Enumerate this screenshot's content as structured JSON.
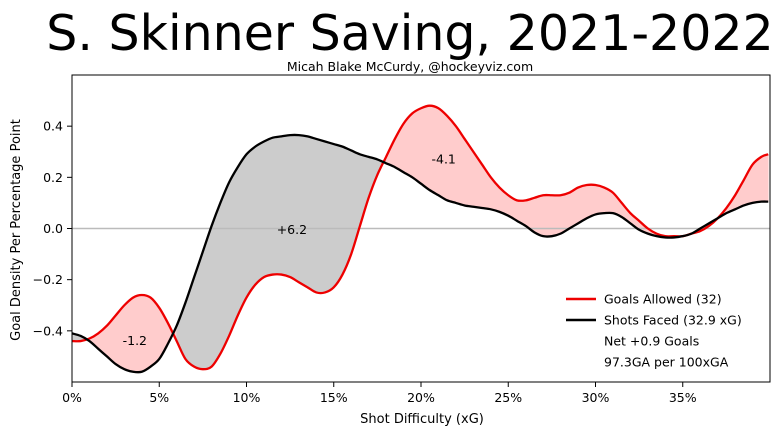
{
  "chart_data": {
    "type": "line",
    "title": "S. Skinner Saving, 2021-2022",
    "subtitle": "Micah Blake McCurdy, @hockeyviz.com",
    "xlabel": "Shot Difficulty (xG)",
    "ylabel": "Goal Density Per Percentage Point",
    "xlim": [
      0,
      40
    ],
    "ylim": [
      -0.6,
      0.6
    ],
    "x_ticks": [
      {
        "value": 0,
        "label": "0%"
      },
      {
        "value": 5,
        "label": "5%"
      },
      {
        "value": 10,
        "label": "10%"
      },
      {
        "value": 15,
        "label": "15%"
      },
      {
        "value": 20,
        "label": "20%"
      },
      {
        "value": 25,
        "label": "25%"
      },
      {
        "value": 30,
        "label": "30%"
      },
      {
        "value": 35,
        "label": "35%"
      }
    ],
    "y_ticks": [
      {
        "value": -0.4,
        "label": "−0.4"
      },
      {
        "value": -0.2,
        "label": "−0.2"
      },
      {
        "value": 0.0,
        "label": "0.0"
      },
      {
        "value": 0.2,
        "label": "0.2"
      },
      {
        "value": 0.4,
        "label": "0.4"
      }
    ],
    "zero_line": true,
    "grid": false,
    "legend_position": "bottom-right",
    "series": [
      {
        "name": "Goals Allowed (32)",
        "color": "#ee0000",
        "x": [
          0,
          0.5,
          1,
          1.5,
          2,
          2.5,
          3,
          3.5,
          4,
          4.5,
          5,
          5.5,
          6,
          6.5,
          7,
          7.5,
          8,
          8.5,
          9,
          9.5,
          10,
          10.5,
          11,
          11.5,
          12,
          12.5,
          13,
          13.5,
          14,
          14.5,
          15,
          15.5,
          16,
          16.5,
          17,
          17.5,
          18,
          18.5,
          19,
          19.5,
          20,
          20.5,
          21,
          21.5,
          22,
          22.5,
          23,
          23.5,
          24,
          24.5,
          25,
          25.5,
          26,
          26.5,
          27,
          27.5,
          28,
          28.5,
          29,
          29.5,
          30,
          30.5,
          31,
          31.5,
          32,
          32.5,
          33,
          33.5,
          34,
          34.5,
          35,
          35.5,
          36,
          36.5,
          37,
          37.5,
          38,
          38.5,
          39,
          39.5,
          39.9
        ],
        "values": [
          -0.44,
          -0.44,
          -0.43,
          -0.41,
          -0.38,
          -0.34,
          -0.3,
          -0.27,
          -0.26,
          -0.27,
          -0.31,
          -0.37,
          -0.44,
          -0.51,
          -0.54,
          -0.55,
          -0.54,
          -0.49,
          -0.42,
          -0.34,
          -0.27,
          -0.22,
          -0.19,
          -0.18,
          -0.18,
          -0.19,
          -0.21,
          -0.23,
          -0.25,
          -0.25,
          -0.23,
          -0.18,
          -0.1,
          0.01,
          0.12,
          0.21,
          0.28,
          0.35,
          0.41,
          0.45,
          0.47,
          0.48,
          0.47,
          0.44,
          0.4,
          0.35,
          0.3,
          0.25,
          0.2,
          0.16,
          0.13,
          0.11,
          0.11,
          0.12,
          0.13,
          0.13,
          0.13,
          0.14,
          0.16,
          0.17,
          0.17,
          0.16,
          0.14,
          0.1,
          0.06,
          0.03,
          0.0,
          -0.02,
          -0.03,
          -0.03,
          -0.03,
          -0.02,
          -0.01,
          0.01,
          0.04,
          0.08,
          0.13,
          0.19,
          0.25,
          0.28,
          0.29
        ]
      },
      {
        "name": "Shots Faced (32.9 xG)",
        "color": "#000000",
        "x": [
          0,
          0.5,
          1,
          1.5,
          2,
          2.5,
          3,
          3.5,
          4,
          4.5,
          5,
          5.5,
          6,
          6.5,
          7,
          7.5,
          8,
          8.5,
          9,
          9.5,
          10,
          10.5,
          11,
          11.5,
          12,
          12.5,
          13,
          13.5,
          14,
          14.5,
          15,
          15.5,
          16,
          16.5,
          17,
          17.5,
          18,
          18.5,
          19,
          19.5,
          20,
          20.5,
          21,
          21.5,
          22,
          22.5,
          23,
          23.5,
          24,
          24.5,
          25,
          25.5,
          26,
          26.5,
          27,
          27.5,
          28,
          28.5,
          29,
          29.5,
          30,
          30.5,
          31,
          31.5,
          32,
          32.5,
          33,
          33.5,
          34,
          34.5,
          35,
          35.5,
          36,
          36.5,
          37,
          37.5,
          38,
          38.5,
          39,
          39.5,
          39.9
        ],
        "values": [
          -0.41,
          -0.42,
          -0.44,
          -0.47,
          -0.5,
          -0.53,
          -0.55,
          -0.56,
          -0.56,
          -0.54,
          -0.51,
          -0.45,
          -0.38,
          -0.29,
          -0.19,
          -0.09,
          0.01,
          0.1,
          0.18,
          0.24,
          0.29,
          0.32,
          0.34,
          0.355,
          0.36,
          0.365,
          0.365,
          0.36,
          0.35,
          0.34,
          0.33,
          0.32,
          0.305,
          0.29,
          0.28,
          0.27,
          0.255,
          0.24,
          0.22,
          0.2,
          0.175,
          0.15,
          0.13,
          0.11,
          0.1,
          0.09,
          0.085,
          0.08,
          0.075,
          0.065,
          0.05,
          0.03,
          0.01,
          -0.015,
          -0.03,
          -0.03,
          -0.02,
          0.0,
          0.02,
          0.04,
          0.055,
          0.06,
          0.06,
          0.045,
          0.02,
          -0.005,
          -0.02,
          -0.03,
          -0.035,
          -0.035,
          -0.03,
          -0.02,
          0.0,
          0.02,
          0.04,
          0.06,
          0.075,
          0.09,
          0.1,
          0.105,
          0.105
        ]
      }
    ],
    "annotations": [
      {
        "text": "-1.2",
        "x": 3.6,
        "y": -0.44
      },
      {
        "text": "+6.2",
        "x": 12.6,
        "y": -0.005
      },
      {
        "text": "-4.1",
        "x": 21.3,
        "y": 0.27
      }
    ],
    "legend_extra": [
      "Net +0.9 Goals",
      "97.3GA per 100xGA"
    ],
    "fill_colors": {
      "above": "#ffcccc",
      "below": "#cccccc"
    }
  }
}
